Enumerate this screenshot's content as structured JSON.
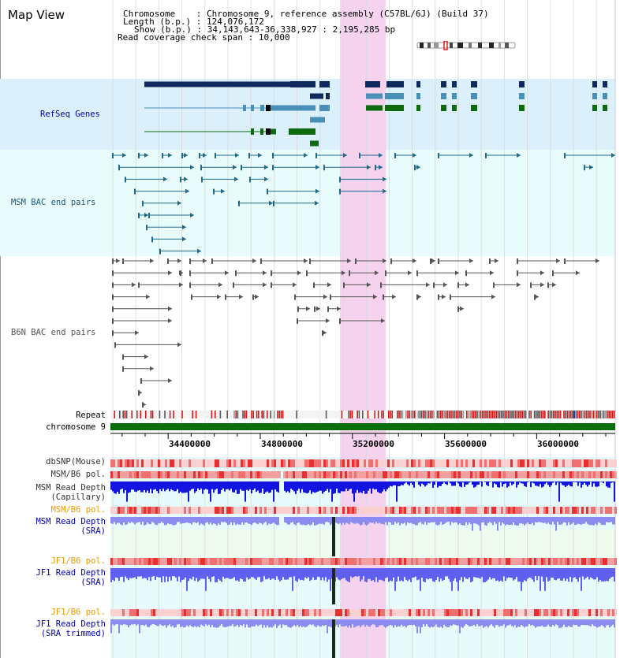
{
  "title": "Map View",
  "info": {
    "chromosome_label": "Chromosome",
    "chromosome_value": "Chromosome 9, reference assembly (C57BL/6J) (Build 37)",
    "length_label": "Length (b.p.)",
    "length_value": "124,076,172",
    "show_label": "Show (b.p.)",
    "show_value": "34,143,643-36,338,927 : 2,195,285 bp",
    "coverage_label": "Read coverage check span",
    "coverage_value": "10,000"
  },
  "tracks": {
    "refseq": "RefSeq Genes",
    "msm_bac": "MSM BAC end pairs",
    "b6n_bac": "B6N BAC end pairs",
    "repeat": "Repeat",
    "chromosome": "chromosome 9",
    "dbsnp": "dbSNP(Mouse)",
    "msm_b6_pol": "MSM/B6 pol.",
    "msm_read_depth_cap_1": "MSM Read Depth",
    "msm_read_depth_cap_2": "(Capillary)",
    "msm_b6_pol2": "MSM/B6 pol.",
    "msm_read_depth_sra_1": "MSM Read Depth",
    "msm_read_depth_sra_2": "(SRA)",
    "jf1_b6_pol": "JF1/B6 pol.",
    "jf1_read_depth_sra_1": "JF1 Read Depth",
    "jf1_read_depth_sra_2": "(SRA)",
    "jf1_b6_pol2": "JF1/B6 pol.",
    "jf1_read_depth_trim_1": "JF1 Read Depth",
    "jf1_read_depth_trim_2": "(SRA trimmed)"
  },
  "axis_ticks": [
    "34400000",
    "34800000",
    "35200000",
    "35600000",
    "36000000"
  ],
  "colors": {
    "refseq_bg": "#dcf0fb",
    "bac_bg": "#e8fcfc",
    "highlight": "#f5d2ee",
    "msm_label": "#1e5a7a",
    "b6n_label": "#555555",
    "depth_label": "#0000aa",
    "pol_orange": "#e89a00",
    "chrom_green": "#0a6e0a"
  }
}
